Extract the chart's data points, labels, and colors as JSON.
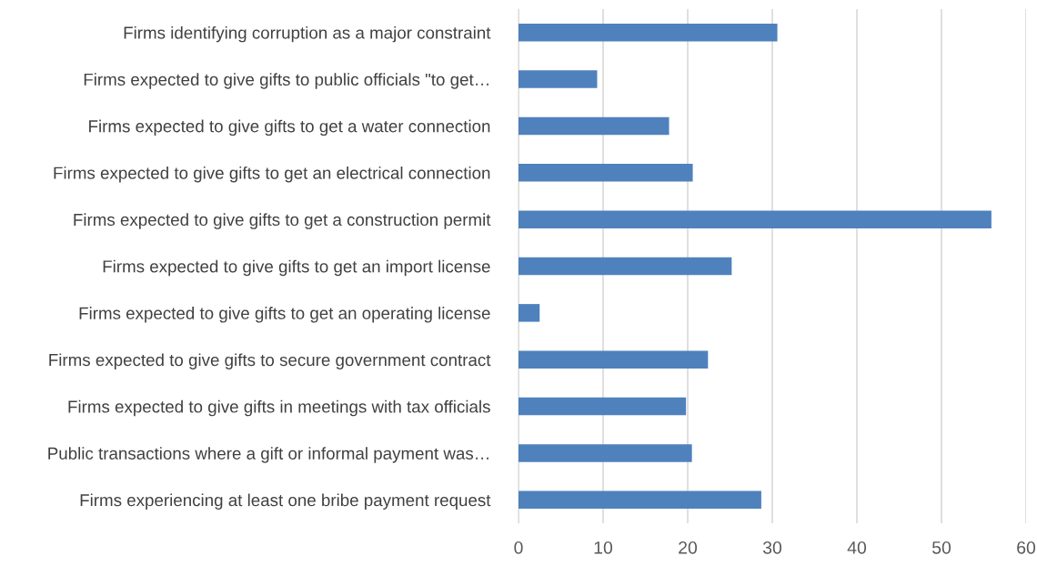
{
  "chart_data": {
    "type": "bar",
    "orientation": "horizontal",
    "categories": [
      "Firms identifying corruption as a major constraint",
      "Firms expected to give gifts to public officials \"to get…",
      "Firms expected to give gifts to get a water connection",
      "Firms expected to give gifts to get an electrical connection",
      "Firms expected to give gifts to get a construction permit",
      "Firms expected to give gifts to get an import license",
      "Firms expected to give gifts to get an operating license",
      "Firms expected to give gifts to secure government contract",
      "Firms expected to give gifts in meetings with tax officials",
      "Public transactions where a gift or informal payment was…",
      "Firms experiencing at least one bribe payment request"
    ],
    "values": [
      30.6,
      9.3,
      17.8,
      20.6,
      55.9,
      25.2,
      2.5,
      22.4,
      19.8,
      20.5,
      28.7
    ],
    "color": "#4f81bd",
    "xlim": [
      0,
      60
    ],
    "xticks": [
      0,
      10,
      20,
      30,
      40,
      50,
      60
    ],
    "grid": "x",
    "legend": false
  }
}
